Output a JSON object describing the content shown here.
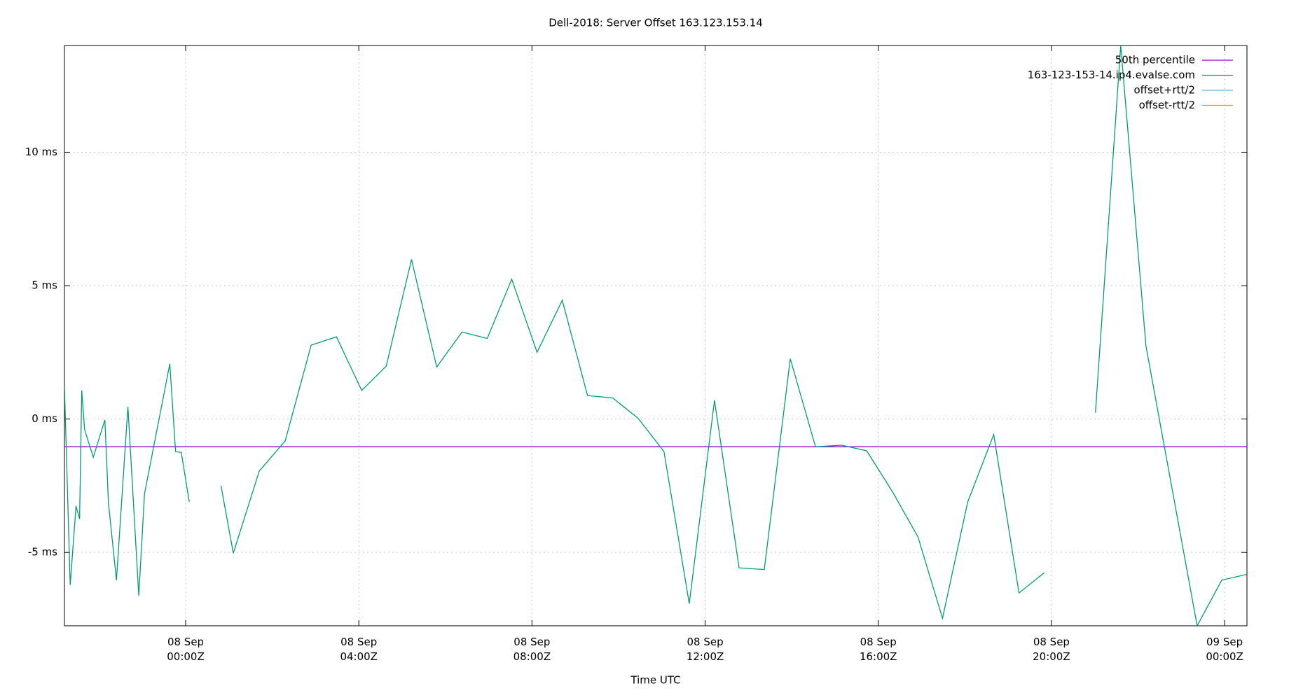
{
  "chart_data": {
    "type": "line",
    "title": "Dell-2018: Server Offset 163.123.153.14",
    "x_label": "Time UTC",
    "x": [
      "07 Sep 21:12Z",
      "07 Sep 21:20Z",
      "07 Sep 21:28Z",
      "07 Sep 21:33Z",
      "07 Sep 21:36Z",
      "07 Sep 21:40Z",
      "07 Sep 21:52Z",
      "07 Sep 22:08Z",
      "07 Sep 22:13Z",
      "07 Sep 22:24Z",
      "07 Sep 22:40Z",
      "07 Sep 22:55Z",
      "07 Sep 23:03Z",
      "07 Sep 23:38Z",
      "07 Sep 23:46Z",
      "07 Sep 23:54Z",
      "08 Sep 00:05Z",
      "08 Sep 00:30Z",
      "08 Sep 00:49Z",
      "08 Sep 01:06Z",
      "08 Sep 01:42Z",
      "08 Sep 02:18Z",
      "08 Sep 02:54Z",
      "08 Sep 03:29Z",
      "08 Sep 04:04Z",
      "08 Sep 04:38Z",
      "08 Sep 05:13Z",
      "08 Sep 05:48Z",
      "08 Sep 06:23Z",
      "08 Sep 06:58Z",
      "08 Sep 07:32Z",
      "08 Sep 08:07Z",
      "08 Sep 08:42Z",
      "08 Sep 09:17Z",
      "08 Sep 09:52Z",
      "08 Sep 10:27Z",
      "08 Sep 11:03Z",
      "08 Sep 11:38Z",
      "08 Sep 12:13Z",
      "08 Sep 12:47Z",
      "08 Sep 13:22Z",
      "08 Sep 13:58Z",
      "08 Sep 14:33Z",
      "08 Sep 15:09Z",
      "08 Sep 15:44Z",
      "08 Sep 16:20Z",
      "08 Sep 16:55Z",
      "08 Sep 17:29Z",
      "08 Sep 18:04Z",
      "08 Sep 18:40Z",
      "08 Sep 19:15Z",
      "08 Sep 19:50Z",
      "08 Sep 20:30Z",
      "08 Sep 21:01Z",
      "08 Sep 21:36Z",
      "08 Sep 22:11Z",
      "08 Sep 23:22Z",
      "08 Sep 23:56Z",
      "09 Sep 00:31Z"
    ],
    "series": [
      {
        "name": "50th percentile",
        "color": "#9400d3",
        "x": [
          "07 Sep 21:12Z",
          "09 Sep 00:31Z"
        ],
        "values": [
          -1.04,
          -1.04
        ]
      },
      {
        "name": "163-123-153-14.ip4.evalse.com",
        "color": "#009e73",
        "values": [
          1.22,
          -6.22,
          -3.26,
          -3.75,
          1.07,
          -0.4,
          -1.43,
          -0.03,
          -3.14,
          -6.04,
          0.46,
          -6.62,
          -2.8,
          2.07,
          -1.22,
          -1.25,
          -3.11,
          null,
          -2.5,
          -5.03,
          -1.95,
          -0.82,
          2.77,
          3.08,
          1.07,
          1.98,
          5.98,
          1.95,
          3.26,
          3.02,
          5.24,
          2.5,
          4.45,
          0.88,
          0.79,
          0.03,
          -1.22,
          -6.92,
          0.7,
          -5.58,
          -5.64,
          2.26,
          -1.04,
          -0.98,
          -1.19,
          -2.74,
          -4.42,
          -7.47,
          -3.11,
          -0.58,
          -6.52,
          -5.76,
          null,
          0.24,
          14.0,
          2.74,
          -7.75,
          -6.04,
          -5.82
        ]
      },
      {
        "name": "offset+rtt/2",
        "color": "#56b4e9"
      },
      {
        "name": "offset-rtt/2",
        "color": "#e69f00"
      }
    ],
    "xlim": [
      "07 Sep 21:12Z",
      "09 Sep 00:31Z"
    ],
    "xticks": [
      "08 Sep 00:00Z",
      "08 Sep 04:00Z",
      "08 Sep 08:00Z",
      "08 Sep 12:00Z",
      "08 Sep 16:00Z",
      "08 Sep 20:00Z",
      "09 Sep 00:00Z"
    ],
    "ylim": [
      -7.75,
      14
    ],
    "yticks": [
      {
        "value": -5,
        "label": "-5 ms"
      },
      {
        "value": 0,
        "label": "0 ms"
      },
      {
        "value": 5,
        "label": "5 ms"
      },
      {
        "value": 10,
        "label": "10 ms"
      }
    ],
    "grid": true,
    "legend": "top-right"
  }
}
